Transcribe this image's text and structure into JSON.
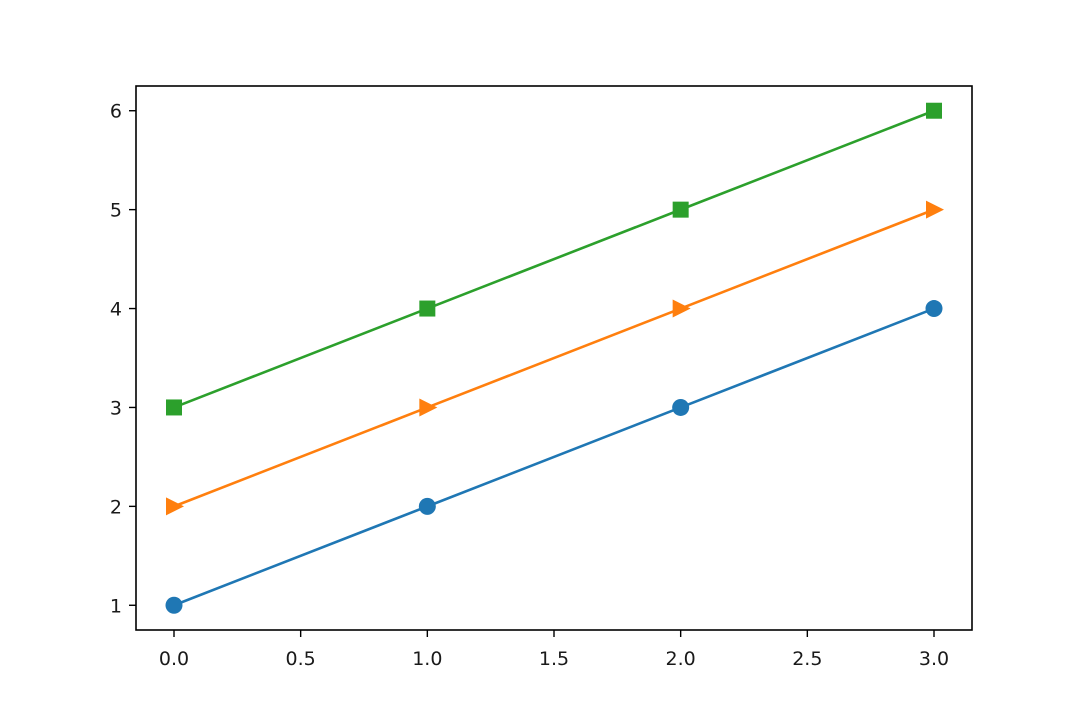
{
  "chart_data": {
    "type": "line",
    "title": "",
    "xlabel": "",
    "ylabel": "",
    "xlim": [
      -0.15,
      3.15
    ],
    "ylim": [
      0.75,
      6.25
    ],
    "xticks": [
      0.0,
      0.5,
      1.0,
      1.5,
      2.0,
      2.5,
      3.0
    ],
    "xtick_labels": [
      "0.0",
      "0.5",
      "1.0",
      "1.5",
      "2.0",
      "2.5",
      "3.0"
    ],
    "yticks": [
      1,
      2,
      3,
      4,
      5,
      6
    ],
    "ytick_labels": [
      "1",
      "2",
      "3",
      "4",
      "5",
      "6"
    ],
    "grid": false,
    "legend": false,
    "x": [
      0,
      1,
      2,
      3
    ],
    "series": [
      {
        "values": [
          1,
          2,
          3,
          4
        ],
        "color": "#1f77b4",
        "marker": "circle"
      },
      {
        "values": [
          2,
          3,
          4,
          5
        ],
        "color": "#ff7f0e",
        "marker": "triangle-right"
      },
      {
        "values": [
          3,
          4,
          5,
          6
        ],
        "color": "#2ca02c",
        "marker": "square"
      }
    ]
  }
}
